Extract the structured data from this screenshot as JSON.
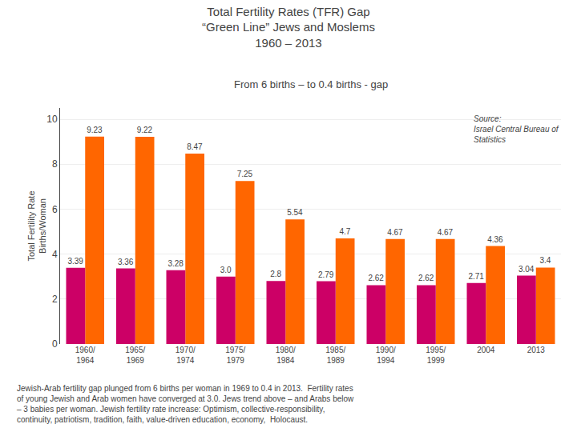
{
  "chart_data": {
    "type": "bar",
    "title": "Total Fertility Rates (TFR) Gap\n“Green Line” Jews and Moslems\n1960 – 2013",
    "subtitle": "From 6 births – to 0.4 births - gap",
    "ylabel": "Total Fertility Rate\nBirths/Woman",
    "categories": [
      "1960/\n1964",
      "1965/\n1969",
      "1970/\n1974",
      "1975/\n1979",
      "1980/\n1984",
      "1985/\n1989",
      "1990/\n1994",
      "1995/\n1999",
      "2004",
      "2013"
    ],
    "series": [
      {
        "color": "#FF6600",
        "values": [
          9.23,
          9.22,
          8.47,
          7.25,
          5.54,
          4.7,
          4.67,
          4.67,
          4.36,
          3.4
        ],
        "value_labels": [
          "9.23",
          "9.22",
          "8.47",
          "7.25",
          "5.54",
          "4.7",
          "4.67",
          "4.67",
          "4.36",
          "3.4"
        ]
      },
      {
        "color": "#CC0066",
        "values": [
          3.39,
          3.36,
          3.28,
          3.0,
          2.8,
          2.79,
          2.62,
          2.62,
          2.71,
          3.04
        ],
        "value_labels": [
          "3.39",
          "3.36",
          "3.28",
          "3.0",
          "2.8",
          "2.79",
          "2.62",
          "2.62",
          "2.71",
          "3.04"
        ]
      }
    ],
    "ylim": [
      0,
      10.5
    ],
    "yticks": [
      0,
      2,
      4,
      6,
      8,
      10
    ],
    "grid": true,
    "data_labels": true,
    "annotations": [
      "Source:\nIsrael Central Bureau of\nStatistics",
      "Jewish-Arab fertility gap plunged from 6 births per woman in 1969 to 0.4 in 2013.  Fertility rates\nof young Jewish and Arab women have converged at 3.0. Jews trend above – and Arabs below\n– 3 babies per woman. Jewish fertility rate increase: Optimism, collective-responsibility,\ncontinuity, patriotism, tradition, faith, value-driven education, economy,  Holocaust."
    ]
  }
}
